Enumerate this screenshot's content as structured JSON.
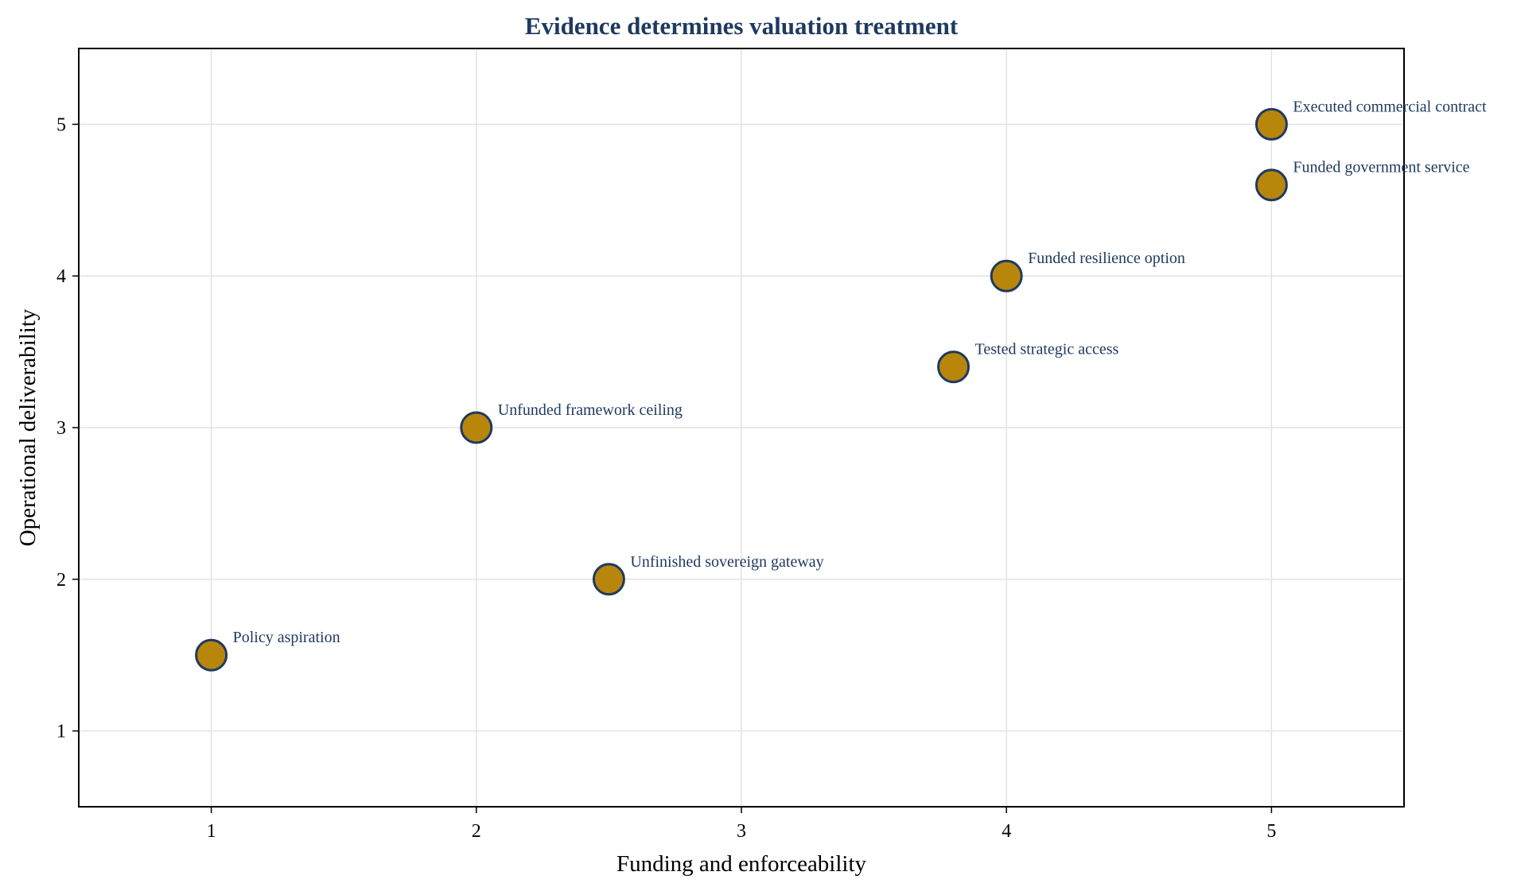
{
  "colors": {
    "title": "#1f3a60",
    "marker_fill": "#b8860b",
    "marker_edge": "#1f3a60",
    "label": "#1f3a60",
    "grid": "#e3e3e3",
    "frame": "#000000"
  },
  "chart_data": {
    "type": "scatter",
    "title": "Evidence determines valuation treatment",
    "xlabel": "Funding and enforceability",
    "ylabel": "Operational deliverability",
    "xlim": [
      0.5,
      5.5
    ],
    "ylim": [
      0.5,
      5.5
    ],
    "xticks": [
      1,
      2,
      3,
      4,
      5
    ],
    "yticks": [
      1,
      2,
      3,
      4,
      5
    ],
    "grid": true,
    "points": [
      {
        "label": "Policy aspiration",
        "x": 1.0,
        "y": 1.5
      },
      {
        "label": "Unfunded framework ceiling",
        "x": 2.0,
        "y": 3.0
      },
      {
        "label": "Unfinished sovereign gateway",
        "x": 2.5,
        "y": 2.0
      },
      {
        "label": "Tested strategic access",
        "x": 3.8,
        "y": 3.4
      },
      {
        "label": "Funded resilience option",
        "x": 4.0,
        "y": 4.0
      },
      {
        "label": "Funded government service",
        "x": 5.0,
        "y": 4.6
      },
      {
        "label": "Executed commercial contract",
        "x": 5.0,
        "y": 5.0
      }
    ]
  }
}
